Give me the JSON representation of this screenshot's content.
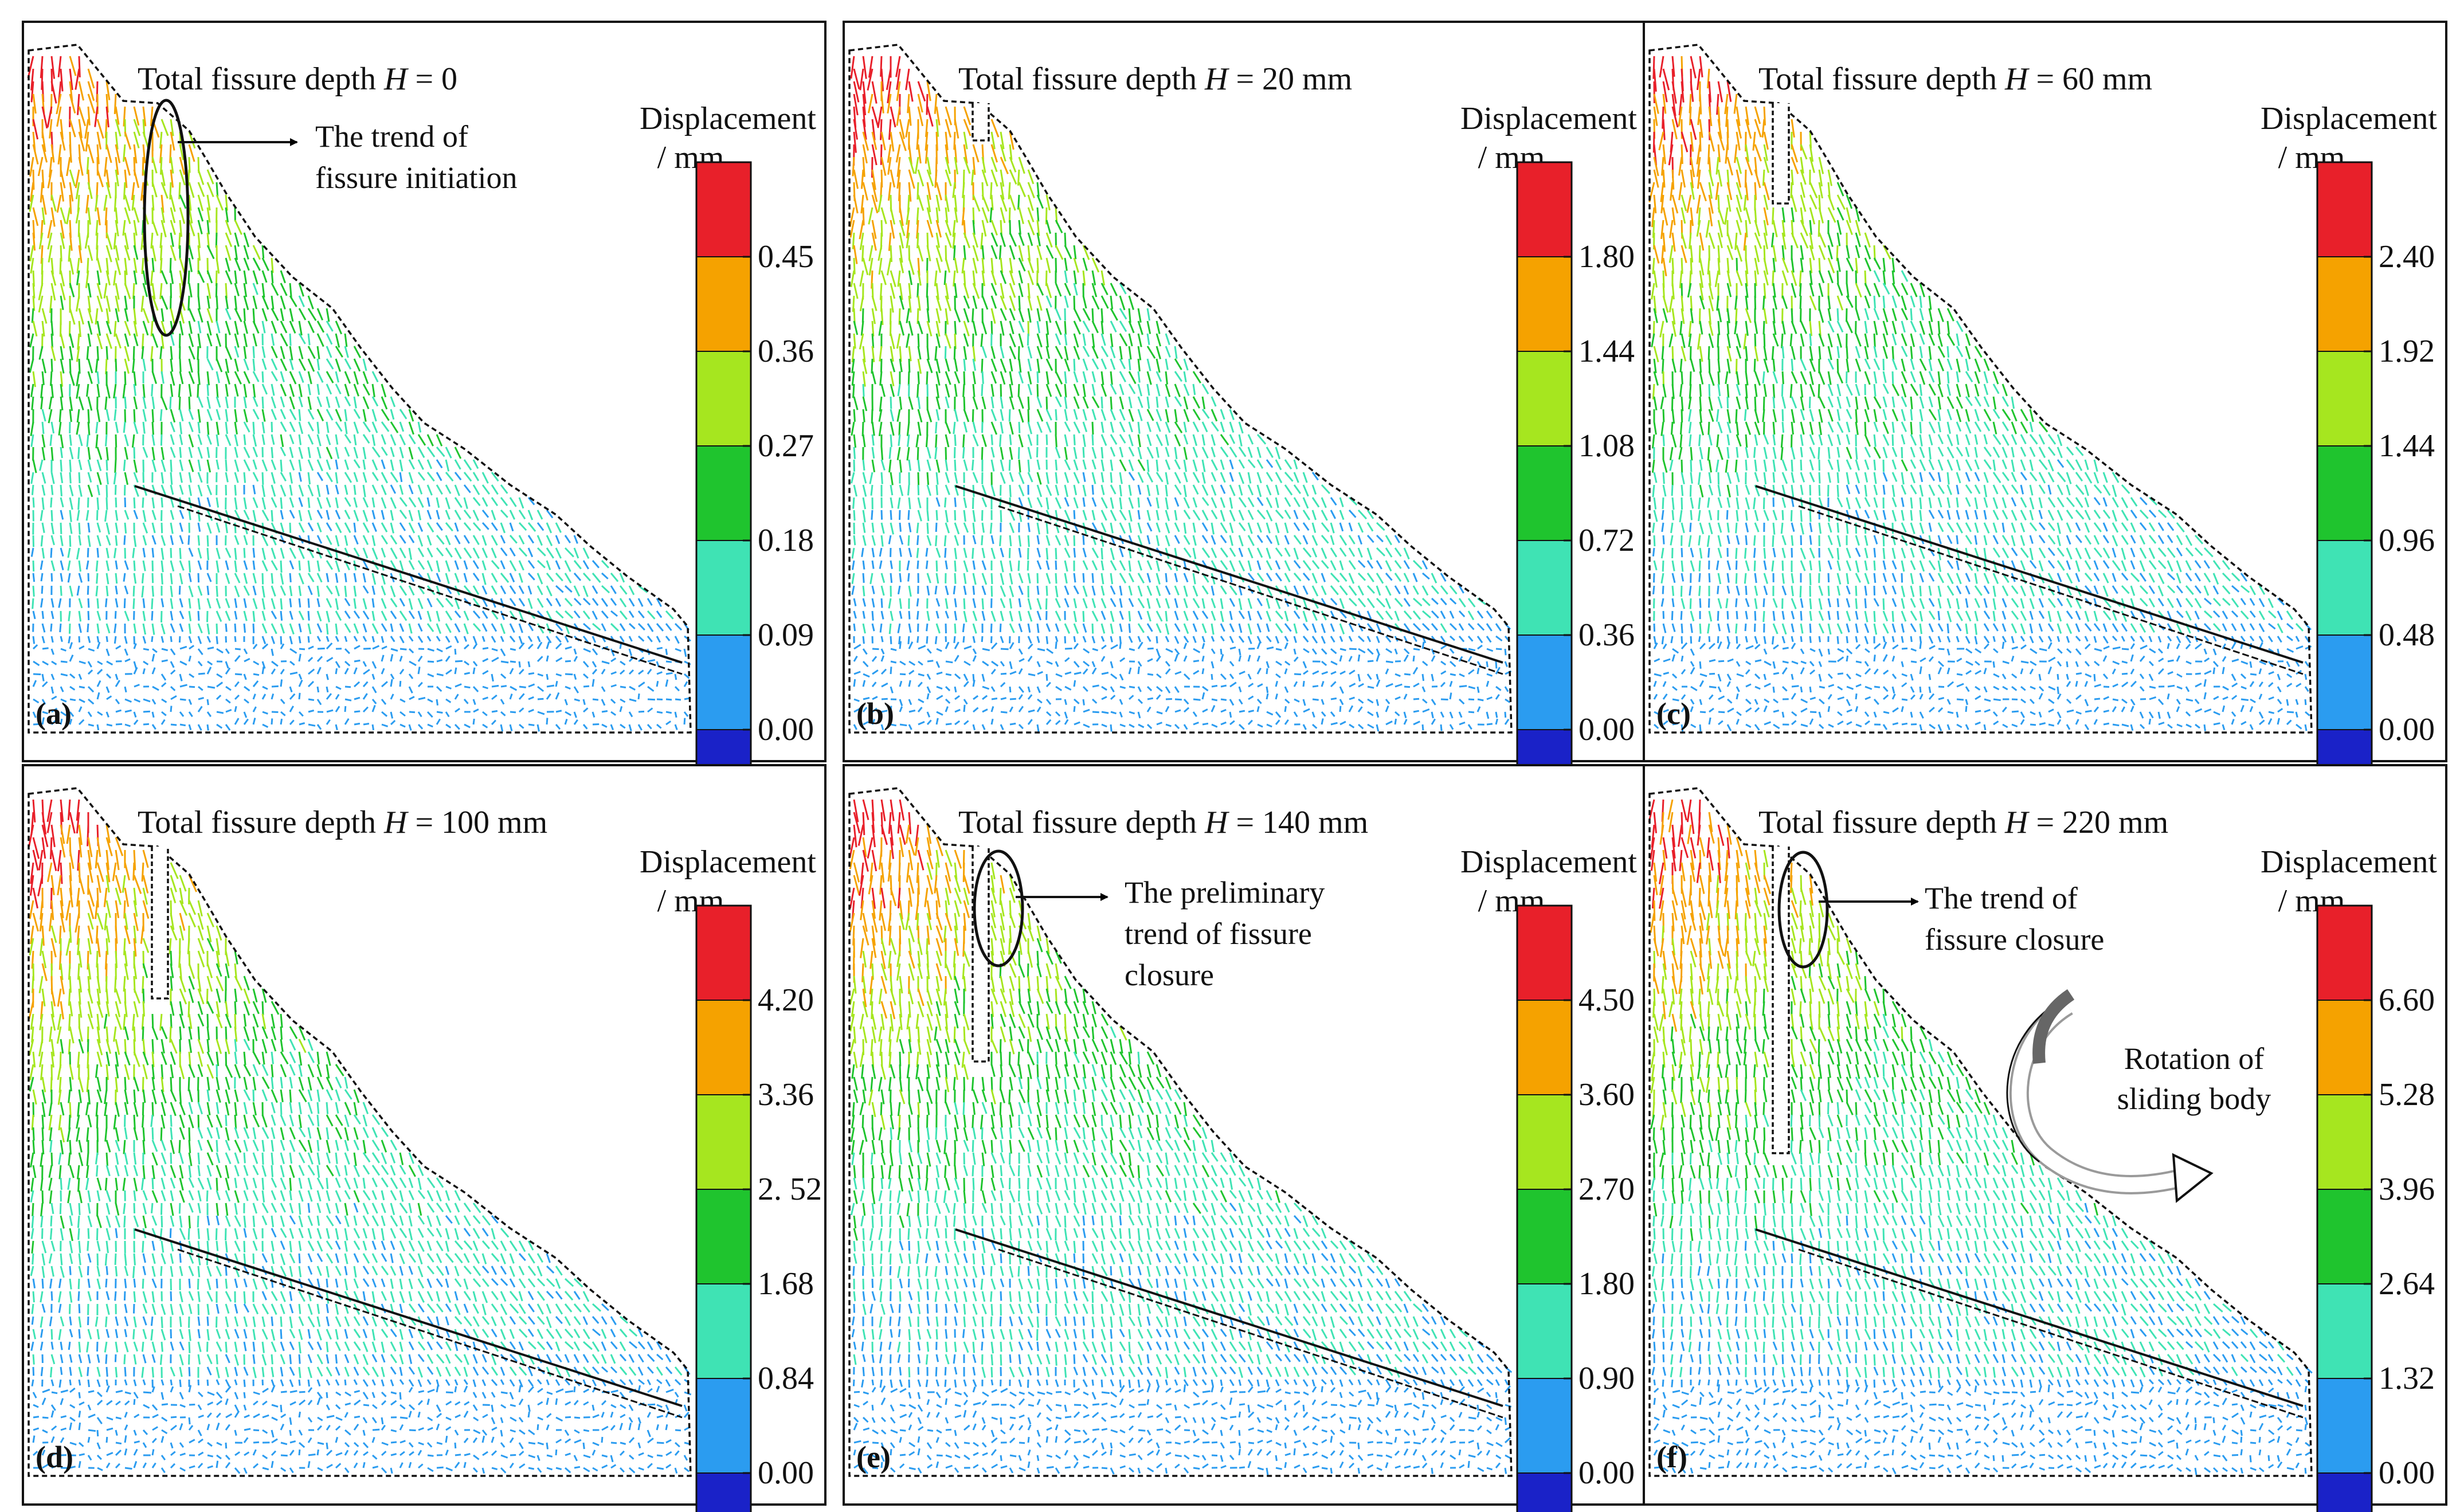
{
  "figure": {
    "panels": [
      {
        "letter": "(a)",
        "title_prefix": "Total fissure depth ",
        "title_var": "H",
        "title_value": " = 0",
        "fissure_depth_mm": 0,
        "legend_title": "Displacement",
        "legend_unit": "/ mm",
        "ticks": [
          "0.45",
          "0.36",
          "0.27",
          "0.18",
          "0.09",
          "0.00"
        ],
        "annotation_lines": [
          "The trend of",
          "fissure initiation"
        ]
      },
      {
        "letter": "(b)",
        "title_prefix": "Total fissure depth ",
        "title_var": "H",
        "title_value": " = 20 mm",
        "fissure_depth_mm": 20,
        "legend_title": "Displacement",
        "legend_unit": "/ mm",
        "ticks": [
          "1.80",
          "1.44",
          "1.08",
          "0.72",
          "0.36",
          "0.00"
        ],
        "annotation_lines": []
      },
      {
        "letter": "(c)",
        "title_prefix": "Total fissure depth ",
        "title_var": "H",
        "title_value": " = 60 mm",
        "fissure_depth_mm": 60,
        "legend_title": "Displacement",
        "legend_unit": "/ mm",
        "ticks": [
          "2.40",
          "1.92",
          "1.44",
          "0.96",
          "0.48",
          "0.00"
        ],
        "annotation_lines": []
      },
      {
        "letter": "(d)",
        "title_prefix": "Total fissure depth ",
        "title_var": "H",
        "title_value": " = 100 mm",
        "fissure_depth_mm": 100,
        "legend_title": "Displacement",
        "legend_unit": "/ mm",
        "ticks": [
          "4.20",
          "3.36",
          "2. 52",
          "1.68",
          "0.84",
          "0.00"
        ],
        "annotation_lines": []
      },
      {
        "letter": "(e)",
        "title_prefix": "Total fissure depth ",
        "title_var": "H",
        "title_value": " = 140 mm",
        "fissure_depth_mm": 140,
        "legend_title": "Displacement",
        "legend_unit": "/ mm",
        "ticks": [
          "4.50",
          "3.60",
          "2.70",
          "1.80",
          "0.90",
          "0.00"
        ],
        "annotation_lines": [
          "The preliminary",
          "trend of fissure",
          "closure"
        ]
      },
      {
        "letter": "(f)",
        "title_prefix": "Total fissure depth ",
        "title_var": "H",
        "title_value": " = 220 mm",
        "fissure_depth_mm": 220,
        "legend_title": "Displacement",
        "legend_unit": "/ mm",
        "ticks": [
          "6.60",
          "5.28",
          "3.96",
          "2.64",
          "1.32",
          "0.00"
        ],
        "annotation_lines": [
          "The trend of",
          "fissure closure"
        ],
        "rotation_label": [
          "Rotation of",
          "sliding body"
        ]
      }
    ],
    "colorbar_colors": [
      "#e8202a",
      "#f5a200",
      "#a6e61f",
      "#1fc42e",
      "#3fe3b4",
      "#2b9cf0",
      "#1a22c8"
    ]
  }
}
